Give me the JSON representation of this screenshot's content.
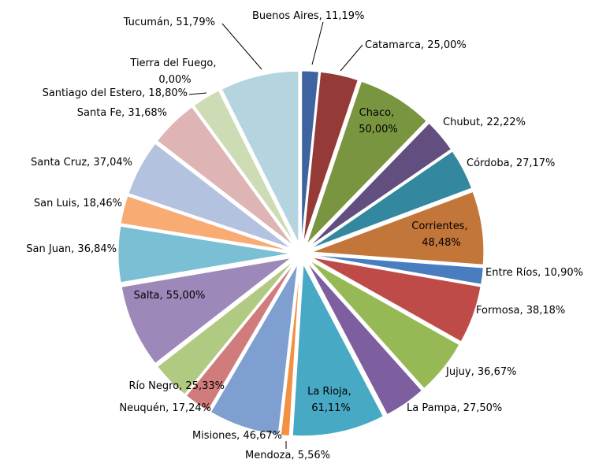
{
  "chart_data": {
    "type": "pie",
    "exploded": true,
    "label_separator": ", ",
    "categories": [
      "Buenos Aires",
      "Catamarca",
      "Chaco",
      "Chubut",
      "Córdoba",
      "Corrientes",
      "Entre Ríos",
      "Formosa",
      "Jujuy",
      "La Pampa",
      "La Rioja",
      "Mendoza",
      "Misiones",
      "Neuquén",
      "Río Negro",
      "Salta",
      "San Juan",
      "San Luis",
      "Santa Cruz",
      "Santa Fe",
      "Santiago del Estero",
      "Tierra del Fuego",
      "Tucumán"
    ],
    "values": [
      11.19,
      25.0,
      50.0,
      22.22,
      27.17,
      48.48,
      10.9,
      38.18,
      36.67,
      27.5,
      61.11,
      5.56,
      46.67,
      17.24,
      25.33,
      55.0,
      36.84,
      18.46,
      37.04,
      31.68,
      18.8,
      0.0,
      51.79
    ],
    "value_labels": [
      "11,19%",
      "25,00%",
      "50,00%",
      "22,22%",
      "27,17%",
      "48,48%",
      "10,90%",
      "38,18%",
      "36,67%",
      "27,50%",
      "61,11%",
      "5,56%",
      "46,67%",
      "17,24%",
      "25,33%",
      "55,00%",
      "36,84%",
      "18,46%",
      "37,04%",
      "31,68%",
      "18,80%",
      "0,00%",
      "51,79%"
    ],
    "colors": [
      "#3d64a0",
      "#963a38",
      "#7a953f",
      "#634e80",
      "#33889f",
      "#c3763a",
      "#4a7cc0",
      "#be4b48",
      "#97b955",
      "#7d5fa0",
      "#47a9c4",
      "#f39041",
      "#7f9fd0",
      "#d07c7c",
      "#b1ca82",
      "#9d88ba",
      "#7bbfd4",
      "#f9ab74",
      "#b3c2df",
      "#deb4b4",
      "#cedcb5",
      "#c8d7e8",
      "#b4d4e0"
    ]
  }
}
